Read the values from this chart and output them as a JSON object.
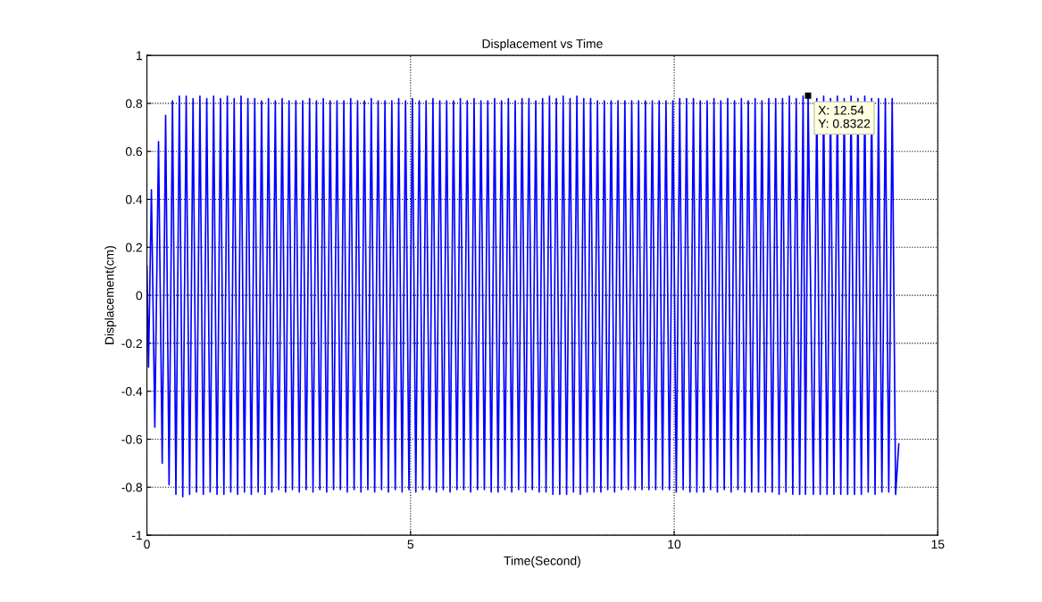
{
  "chart_data": {
    "type": "line",
    "title": "Displacement vs Time",
    "xlabel": "Time(Second)",
    "ylabel": "Displacement(cm)",
    "xlim": [
      0,
      15
    ],
    "xticks": [
      0,
      5,
      10,
      15
    ],
    "ylim": [
      -1,
      1
    ],
    "yticks": [
      -1,
      -0.8,
      -0.6,
      -0.4,
      -0.2,
      0,
      0.2,
      0.4,
      0.6,
      0.8,
      1
    ],
    "grid": true,
    "legend": false,
    "marker": "none",
    "line_style": "solid",
    "annotations": [
      {
        "text": "X: 12.54\nY: 0.8322",
        "x": 12.54,
        "y": 0.8322
      }
    ],
    "series": [
      {
        "color": "#0000ff",
        "x": [
          0,
          0.03,
          0.085,
          0.15,
          0.22,
          0.29,
          0.355,
          0.42,
          0.485,
          0.55,
          0.615,
          0.68,
          0.745,
          0.81,
          0.875,
          0.94,
          1.005,
          1.07,
          1.135,
          1.2,
          1.265,
          1.33,
          1.395,
          1.46,
          1.525,
          1.59,
          1.655,
          1.72,
          1.785,
          1.85,
          1.915,
          1.98,
          2.045,
          2.11,
          2.175,
          2.24,
          2.305,
          2.37,
          2.435,
          2.5,
          2.565,
          2.63,
          2.695,
          2.76,
          2.825,
          2.89,
          2.955,
          3.02,
          3.085,
          3.15,
          3.215,
          3.28,
          3.345,
          3.41,
          3.475,
          3.54,
          3.605,
          3.67,
          3.735,
          3.8,
          3.865,
          3.93,
          3.995,
          4.06,
          4.125,
          4.19,
          4.255,
          4.32,
          4.385,
          4.45,
          4.515,
          4.58,
          4.645,
          4.71,
          4.775,
          4.84,
          4.905,
          4.97,
          5.035,
          5.1,
          5.165,
          5.23,
          5.295,
          5.36,
          5.425,
          5.49,
          5.555,
          5.62,
          5.685,
          5.75,
          5.815,
          5.88,
          5.945,
          6.01,
          6.075,
          6.14,
          6.205,
          6.27,
          6.335,
          6.4,
          6.465,
          6.53,
          6.595,
          6.66,
          6.725,
          6.79,
          6.855,
          6.92,
          6.985,
          7.05,
          7.115,
          7.18,
          7.245,
          7.31,
          7.375,
          7.44,
          7.505,
          7.57,
          7.635,
          7.7,
          7.765,
          7.83,
          7.895,
          7.96,
          8.025,
          8.09,
          8.155,
          8.22,
          8.285,
          8.35,
          8.415,
          8.48,
          8.545,
          8.61,
          8.675,
          8.74,
          8.805,
          8.87,
          8.935,
          9.0,
          9.065,
          9.13,
          9.195,
          9.26,
          9.325,
          9.39,
          9.455,
          9.52,
          9.585,
          9.65,
          9.715,
          9.78,
          9.845,
          9.91,
          9.975,
          10.04,
          10.105,
          10.17,
          10.235,
          10.3,
          10.365,
          10.43,
          10.495,
          10.56,
          10.625,
          10.69,
          10.755,
          10.82,
          10.885,
          10.95,
          11.015,
          11.08,
          11.145,
          11.21,
          11.275,
          11.34,
          11.405,
          11.47,
          11.535,
          11.6,
          11.665,
          11.73,
          11.795,
          11.86,
          11.925,
          11.99,
          12.055,
          12.12,
          12.185,
          12.25,
          12.315,
          12.38,
          12.445,
          12.49,
          12.54,
          12.64,
          12.705,
          12.77,
          12.835,
          12.9,
          12.965,
          13.03,
          13.095,
          13.16,
          13.225,
          13.29,
          13.355,
          13.42,
          13.485,
          13.55,
          13.615,
          13.68,
          13.745,
          13.81,
          13.875,
          13.94,
          14.005,
          14.07,
          14.135,
          14.2,
          14.26
        ],
        "values": [
          0.12,
          -0.3,
          0.44,
          -0.55,
          0.64,
          -0.7,
          0.75,
          -0.79,
          0.81,
          -0.83,
          0.83,
          -0.84,
          0.83,
          -0.83,
          0.82,
          -0.82,
          0.83,
          -0.83,
          0.82,
          -0.82,
          0.83,
          -0.83,
          0.82,
          -0.83,
          0.83,
          -0.82,
          0.82,
          -0.83,
          0.83,
          -0.82,
          0.82,
          -0.83,
          0.82,
          -0.82,
          0.81,
          -0.83,
          0.82,
          -0.82,
          0.81,
          -0.81,
          0.82,
          -0.82,
          0.81,
          -0.81,
          0.81,
          -0.82,
          0.81,
          -0.81,
          0.82,
          -0.82,
          0.81,
          -0.81,
          0.82,
          -0.82,
          0.81,
          -0.81,
          0.81,
          -0.81,
          0.81,
          -0.82,
          0.82,
          -0.81,
          0.81,
          -0.82,
          0.81,
          -0.81,
          0.82,
          -0.82,
          0.81,
          -0.81,
          0.81,
          -0.82,
          0.81,
          -0.81,
          0.82,
          -0.82,
          0.81,
          -0.81,
          0.82,
          -0.82,
          0.81,
          -0.81,
          0.81,
          -0.81,
          0.82,
          -0.82,
          0.81,
          -0.81,
          0.81,
          -0.82,
          0.81,
          -0.81,
          0.82,
          -0.81,
          0.81,
          -0.82,
          0.82,
          -0.81,
          0.81,
          -0.81,
          0.81,
          -0.82,
          0.82,
          -0.82,
          0.81,
          -0.81,
          0.82,
          -0.82,
          0.81,
          -0.81,
          0.82,
          -0.82,
          0.82,
          -0.81,
          0.81,
          -0.82,
          0.82,
          -0.82,
          0.83,
          -0.83,
          0.82,
          -0.83,
          0.83,
          -0.83,
          0.82,
          -0.82,
          0.83,
          -0.83,
          0.82,
          -0.82,
          0.82,
          -0.82,
          0.81,
          -0.82,
          0.81,
          -0.81,
          0.81,
          -0.82,
          0.81,
          -0.81,
          0.81,
          -0.81,
          0.81,
          -0.81,
          0.81,
          -0.81,
          0.81,
          -0.81,
          0.81,
          -0.81,
          0.81,
          -0.81,
          0.81,
          -0.81,
          0.81,
          -0.82,
          0.82,
          -0.81,
          0.82,
          -0.82,
          0.82,
          -0.82,
          0.81,
          -0.82,
          0.81,
          -0.81,
          0.82,
          -0.82,
          0.81,
          -0.81,
          0.82,
          -0.82,
          0.81,
          -0.81,
          0.82,
          -0.82,
          0.81,
          -0.82,
          0.82,
          -0.82,
          0.81,
          -0.82,
          0.82,
          -0.82,
          0.82,
          -0.83,
          0.82,
          -0.82,
          0.83,
          -0.83,
          0.82,
          -0.83,
          0.83,
          -0.83,
          0.8322,
          -0.83,
          0.82,
          -0.83,
          0.83,
          -0.83,
          0.82,
          -0.83,
          0.83,
          -0.83,
          0.82,
          -0.83,
          0.83,
          -0.83,
          0.82,
          -0.83,
          0.83,
          -0.82,
          0.82,
          -0.83,
          0.82,
          -0.82,
          0.82,
          -0.82,
          0.82,
          -0.83,
          -0.62
        ]
      }
    ]
  }
}
